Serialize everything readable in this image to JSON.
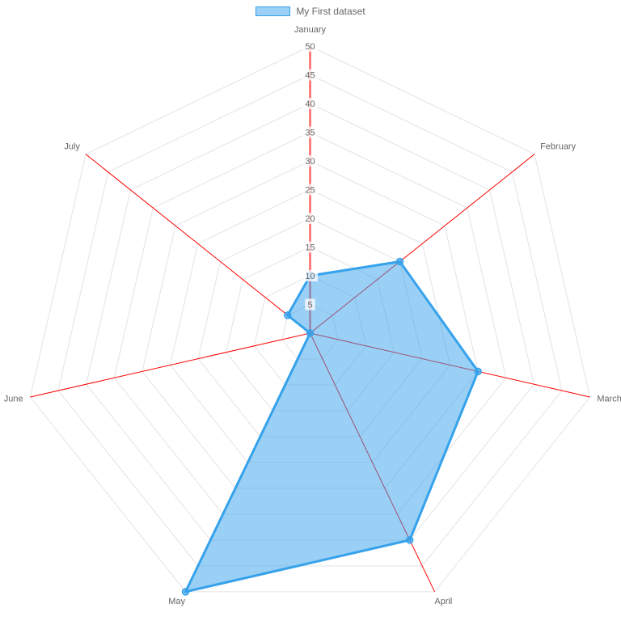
{
  "chart_data": {
    "type": "radar",
    "title": "",
    "categories": [
      "January",
      "February",
      "March",
      "April",
      "May",
      "June",
      "July"
    ],
    "series": [
      {
        "name": "My First dataset",
        "values": [
          10,
          20,
          30,
          40,
          50,
          0,
          5
        ]
      }
    ],
    "scale": {
      "min": 0,
      "max": 50,
      "step": 5,
      "ticks": [
        5,
        10,
        15,
        20,
        25,
        30,
        35,
        40,
        45,
        50
      ]
    },
    "legend": {
      "position": "top",
      "entries": [
        "My First dataset"
      ]
    },
    "layout_hints": {
      "grid": true,
      "grid_shape": "polygon",
      "start_axis": "top",
      "direction": "clockwise"
    },
    "colors": {
      "fill": "rgba(54,162,235,0.5)",
      "border": "#36a2eb",
      "point_fill": "rgba(54,162,235,0.65)",
      "point_border": "#36a2eb",
      "angle_line": "#ff0000",
      "first_axis_line": "rgba(255,0,0,0.5)",
      "grid": "#e3e3e3",
      "tick_backdrop": "rgba(255,255,255,0.75)",
      "text": "#666666"
    }
  }
}
